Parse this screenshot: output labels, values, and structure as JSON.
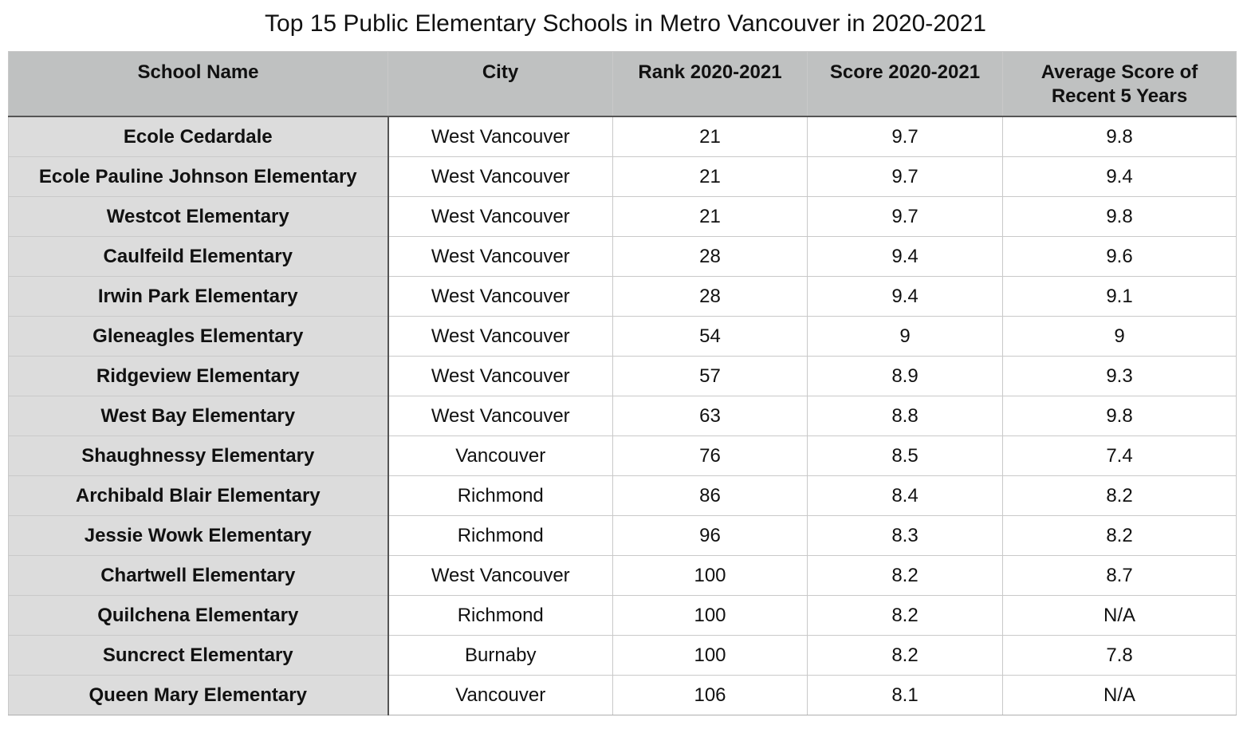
{
  "chart_data": {
    "type": "table",
    "title": "Top 15 Public Elementary Schools in Metro Vancouver in 2020-2021",
    "columns": [
      "School Name",
      "City",
      "Rank 2020-2021",
      "Score 2020-2021",
      "Average Score of Recent 5 Years"
    ],
    "rows": [
      [
        "Ecole Cedardale",
        "West Vancouver",
        "21",
        "9.7",
        "9.8"
      ],
      [
        "Ecole Pauline Johnson Elementary",
        "West Vancouver",
        "21",
        "9.7",
        "9.4"
      ],
      [
        "Westcot Elementary",
        "West Vancouver",
        "21",
        "9.7",
        "9.8"
      ],
      [
        "Caulfeild Elementary",
        "West Vancouver",
        "28",
        "9.4",
        "9.6"
      ],
      [
        "Irwin Park Elementary",
        "West Vancouver",
        "28",
        "9.4",
        "9.1"
      ],
      [
        "Gleneagles Elementary",
        "West Vancouver",
        "54",
        "9",
        "9"
      ],
      [
        "Ridgeview Elementary",
        "West Vancouver",
        "57",
        "8.9",
        "9.3"
      ],
      [
        "West Bay Elementary",
        "West Vancouver",
        "63",
        "8.8",
        "9.8"
      ],
      [
        "Shaughnessy Elementary",
        "Vancouver",
        "76",
        "8.5",
        "7.4"
      ],
      [
        "Archibald Blair Elementary",
        "Richmond",
        "86",
        "8.4",
        "8.2"
      ],
      [
        "Jessie Wowk Elementary",
        "Richmond",
        "96",
        "8.3",
        "8.2"
      ],
      [
        "Chartwell Elementary",
        "West Vancouver",
        "100",
        "8.2",
        "8.7"
      ],
      [
        "Quilchena Elementary",
        "Richmond",
        "100",
        "8.2",
        "N/A"
      ],
      [
        "Suncrect Elementary",
        "Burnaby",
        "100",
        "8.2",
        "7.8"
      ],
      [
        "Queen Mary Elementary",
        "Vancouver",
        "106",
        "8.1",
        "N/A"
      ]
    ]
  },
  "colors": {
    "header_bg": "#bfc1c1",
    "name_col_bg": "#dcdcdc",
    "grid": "#c9c9c9"
  }
}
